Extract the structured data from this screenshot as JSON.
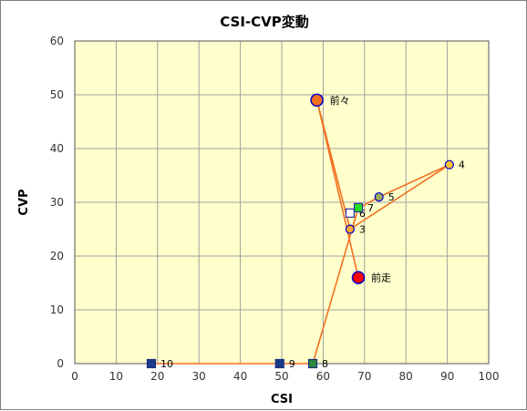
{
  "chart_data": {
    "type": "scatter",
    "title": "CSI-CVP変動",
    "xlabel": "CSI",
    "ylabel": "CVP",
    "xlim": [
      0,
      100
    ],
    "ylim": [
      0,
      60
    ],
    "xticks": [
      0,
      10,
      20,
      30,
      40,
      50,
      60,
      70,
      80,
      90,
      100
    ],
    "yticks": [
      0,
      10,
      20,
      30,
      40,
      50,
      60
    ],
    "grid": true,
    "plot_background": "#ffffcc",
    "grid_color": "#a0a0a0",
    "line_color": "#f07020",
    "points": [
      {
        "label": "前走",
        "x": 68.5,
        "y": 16,
        "marker": "circle-large",
        "fill": "#ff0000",
        "stroke": "#0000cc"
      },
      {
        "label": "前々",
        "x": 58.5,
        "y": 49,
        "marker": "circle-large",
        "fill": "#f07020",
        "stroke": "#0000cc"
      },
      {
        "label": "3",
        "x": 66.5,
        "y": 25,
        "marker": "circle",
        "fill": "#f7a62b",
        "stroke": "#0000cc"
      },
      {
        "label": "4",
        "x": 90.5,
        "y": 37,
        "marker": "circle",
        "fill": "#f7c030",
        "stroke": "#0000cc"
      },
      {
        "label": "5",
        "x": 73.5,
        "y": 31,
        "marker": "circle",
        "fill": "#9aac56",
        "stroke": "#0000cc"
      },
      {
        "label": "6",
        "x": 66.5,
        "y": 28,
        "marker": "square",
        "fill": "#ffffff",
        "stroke": "#3030a0"
      },
      {
        "label": "7",
        "x": 68.5,
        "y": 29,
        "marker": "square",
        "fill": "#22dd22",
        "stroke": "#3030a0"
      },
      {
        "label": "8",
        "x": 57.5,
        "y": 0,
        "marker": "square",
        "fill": "#2a8a3a",
        "stroke": "#1a3080"
      },
      {
        "label": "9",
        "x": 49.5,
        "y": 0,
        "marker": "square",
        "fill": "#1a3a8a",
        "stroke": "#1a3080"
      },
      {
        "label": "10",
        "x": 18.5,
        "y": 0,
        "marker": "square",
        "fill": "#1a3a8a",
        "stroke": "#1a3080"
      }
    ]
  }
}
